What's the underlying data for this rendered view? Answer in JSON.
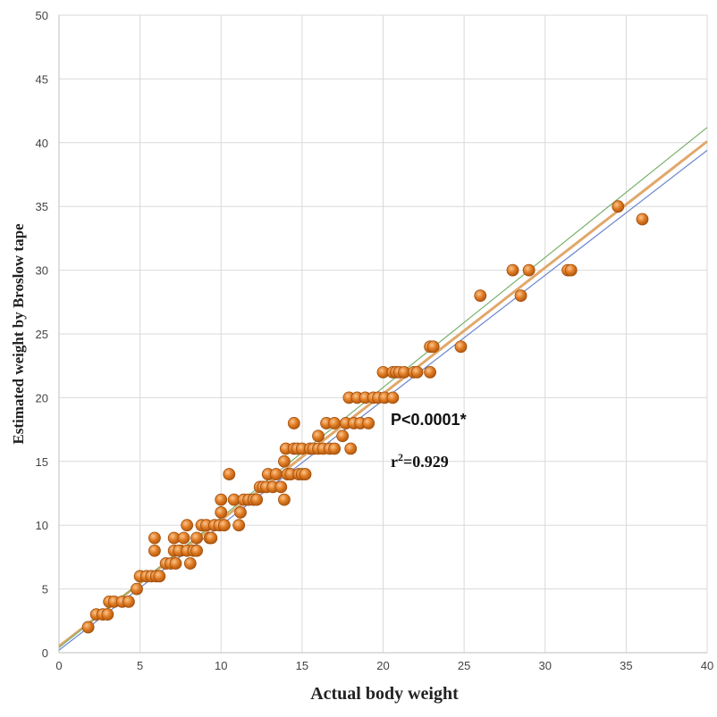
{
  "chart_data": {
    "type": "scatter",
    "title": "",
    "xlabel": "Actual body weight",
    "ylabel": "Estimated weight by Broslow tape",
    "xlim": [
      0,
      40
    ],
    "ylim": [
      0,
      50
    ],
    "xticks": [
      "0",
      "5",
      "10",
      "15",
      "20",
      "25",
      "30",
      "35",
      "40"
    ],
    "yticks": [
      "0",
      "5",
      "10",
      "15",
      "20",
      "25",
      "30",
      "35",
      "40",
      "45",
      "50"
    ],
    "grid": true,
    "legend": "none",
    "annotations": {
      "p_value": "P<0.0001*",
      "r2_prefix": "r",
      "r2_sup": "2",
      "r2_value": "=0.929"
    },
    "colors": {
      "marker": "#e07b22",
      "marker_edge": "#a24f0d",
      "regression_line": "#e0a86a",
      "upper_confidence_line": "#78b06a",
      "lower_confidence_line": "#6b86cf",
      "grid": "#d9d9d9"
    },
    "series": [
      {
        "values": [
          [
            1.8,
            2
          ],
          [
            2.3,
            3
          ],
          [
            2.7,
            3
          ],
          [
            3,
            3
          ],
          [
            3.1,
            4
          ],
          [
            3.4,
            4
          ],
          [
            3.9,
            4
          ],
          [
            4.3,
            4
          ],
          [
            4.8,
            5
          ],
          [
            5,
            6
          ],
          [
            5.4,
            6
          ],
          [
            5.7,
            6
          ],
          [
            6,
            6
          ],
          [
            6.2,
            6
          ],
          [
            5.9,
            8
          ],
          [
            5.9,
            9
          ],
          [
            6.6,
            7
          ],
          [
            6.9,
            7
          ],
          [
            7.2,
            7
          ],
          [
            7.1,
            8
          ],
          [
            7.5,
            8
          ],
          [
            7.1,
            9
          ],
          [
            7.4,
            8
          ],
          [
            7.7,
            9
          ],
          [
            7.9,
            8
          ],
          [
            8.1,
            7
          ],
          [
            8.3,
            8
          ],
          [
            8.5,
            8
          ],
          [
            7.9,
            10
          ],
          [
            8.5,
            9
          ],
          [
            8.8,
            10
          ],
          [
            9.1,
            10
          ],
          [
            9.3,
            9
          ],
          [
            9.6,
            10
          ],
          [
            9.4,
            9
          ],
          [
            9.9,
            10
          ],
          [
            10,
            11
          ],
          [
            10,
            12
          ],
          [
            10.2,
            10
          ],
          [
            10.5,
            14
          ],
          [
            10.8,
            12
          ],
          [
            11.1,
            10
          ],
          [
            11.2,
            11
          ],
          [
            11.4,
            12
          ],
          [
            11.7,
            12
          ],
          [
            12,
            12
          ],
          [
            12.2,
            12
          ],
          [
            12.4,
            13
          ],
          [
            12.6,
            13
          ],
          [
            12.8,
            13
          ],
          [
            12.9,
            14
          ],
          [
            13.2,
            13
          ],
          [
            13.4,
            14
          ],
          [
            13.7,
            13
          ],
          [
            13.9,
            12
          ],
          [
            13.9,
            15
          ],
          [
            14,
            16
          ],
          [
            14.1,
            14
          ],
          [
            14.3,
            14
          ],
          [
            14.5,
            18
          ],
          [
            14.5,
            16
          ],
          [
            14.7,
            16
          ],
          [
            14.8,
            14
          ],
          [
            15,
            16
          ],
          [
            15,
            14
          ],
          [
            15.2,
            14
          ],
          [
            15.5,
            16
          ],
          [
            15.7,
            16
          ],
          [
            16,
            16
          ],
          [
            16,
            17
          ],
          [
            16.3,
            16
          ],
          [
            16.5,
            18
          ],
          [
            16.7,
            16
          ],
          [
            17,
            18
          ],
          [
            17,
            16
          ],
          [
            17.5,
            17
          ],
          [
            17.7,
            18
          ],
          [
            17.9,
            20
          ],
          [
            18,
            16
          ],
          [
            18.2,
            18
          ],
          [
            18.4,
            20
          ],
          [
            18.6,
            18
          ],
          [
            18.9,
            20
          ],
          [
            19.1,
            18
          ],
          [
            19.4,
            20
          ],
          [
            19.7,
            20
          ],
          [
            20,
            22
          ],
          [
            20.1,
            20
          ],
          [
            20.6,
            22
          ],
          [
            20.6,
            20
          ],
          [
            20.8,
            22
          ],
          [
            21,
            22
          ],
          [
            21.3,
            22
          ],
          [
            21.9,
            22
          ],
          [
            22.1,
            22
          ],
          [
            22.9,
            22
          ],
          [
            22.9,
            24
          ],
          [
            23.1,
            24
          ],
          [
            24.8,
            24
          ],
          [
            26,
            28
          ],
          [
            28,
            30
          ],
          [
            28.5,
            28
          ],
          [
            29,
            30
          ],
          [
            31.4,
            30
          ],
          [
            31.6,
            30
          ],
          [
            34.5,
            35
          ],
          [
            36,
            34
          ]
        ]
      }
    ],
    "lines": [
      {
        "role": "regression",
        "from": [
          0,
          0.5
        ],
        "to": [
          40,
          40.1
        ]
      },
      {
        "role": "upper-confidence",
        "from": [
          0,
          0.4
        ],
        "to": [
          40,
          41.2
        ]
      },
      {
        "role": "lower-confidence",
        "from": [
          0,
          0.2
        ],
        "to": [
          40,
          39.4
        ]
      }
    ]
  }
}
